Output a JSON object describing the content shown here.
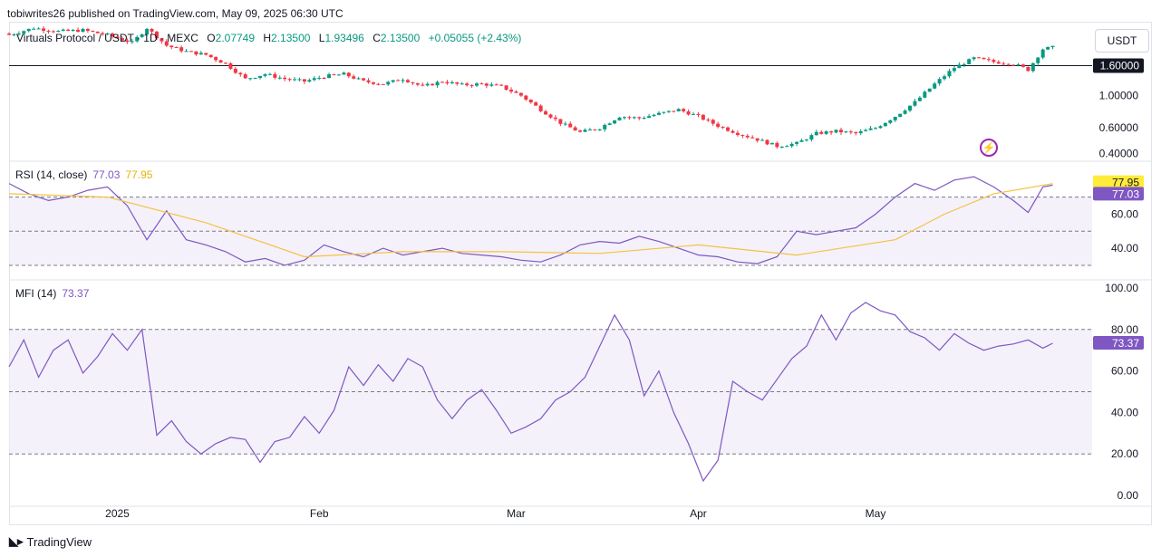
{
  "header": {
    "publisher_line": "tobiwrites26 published on TradingView.com, May 09, 2025 06:30 UTC"
  },
  "legend": {
    "symbol": "Virtuals Protocol / USDT · 1D · MEXC",
    "open_key": "O",
    "open": "2.07749",
    "high_key": "H",
    "high": "2.13500",
    "low_key": "L",
    "low": "1.93496",
    "close_key": "C",
    "close": "2.13500",
    "change": "+0.05055 (+2.43%)"
  },
  "currency_button": "USDT",
  "rsi_label": {
    "name": "RSI (14, close)",
    "value": "77.03",
    "ma_value": "77.95"
  },
  "mfi_label": {
    "name": "MFI (14)",
    "value": "73.37"
  },
  "footer": {
    "brand": "TradingView"
  },
  "icons": {
    "flash": "flash-icon",
    "logo": "tradingview-logo-icon"
  },
  "colors": {
    "up": "#089981",
    "down": "#f23645",
    "rsi": "#7e57c2",
    "rsi_ma": "#f5c242",
    "mfi": "#7e57c2",
    "band": "#ede7f6"
  },
  "chart_data": [
    {
      "type": "candlestick",
      "title": "Virtuals Protocol / USDT · 1D · MEXC",
      "price_scale": "log",
      "y_ticks": [
        "1.00000",
        "0.60000",
        "0.40000"
      ],
      "x_ticks": [
        "2025",
        "Feb",
        "Mar",
        "Apr",
        "May"
      ],
      "horizontal_level": {
        "value": 1.6,
        "label": "1.60000"
      },
      "close_path": [
        [
          0,
          2.6
        ],
        [
          5,
          2.9
        ],
        [
          10,
          2.75
        ],
        [
          15,
          2.8
        ],
        [
          20,
          2.6
        ],
        [
          25,
          2.3
        ],
        [
          28,
          2.9
        ],
        [
          32,
          2.2
        ],
        [
          36,
          2.0
        ],
        [
          40,
          1.9
        ],
        [
          44,
          1.65
        ],
        [
          48,
          1.3
        ],
        [
          52,
          1.4
        ],
        [
          56,
          1.3
        ],
        [
          60,
          1.25
        ],
        [
          64,
          1.35
        ],
        [
          68,
          1.4
        ],
        [
          72,
          1.25
        ],
        [
          76,
          1.2
        ],
        [
          80,
          1.3
        ],
        [
          84,
          1.15
        ],
        [
          88,
          1.25
        ],
        [
          92,
          1.18
        ],
        [
          96,
          1.2
        ],
        [
          100,
          1.15
        ],
        [
          104,
          1.0
        ],
        [
          108,
          0.8
        ],
        [
          112,
          0.65
        ],
        [
          116,
          0.56
        ],
        [
          120,
          0.6
        ],
        [
          124,
          0.72
        ],
        [
          128,
          0.7
        ],
        [
          132,
          0.75
        ],
        [
          136,
          0.8
        ],
        [
          140,
          0.72
        ],
        [
          144,
          0.62
        ],
        [
          148,
          0.55
        ],
        [
          152,
          0.5
        ],
        [
          156,
          0.45
        ],
        [
          160,
          0.47
        ],
        [
          164,
          0.55
        ],
        [
          168,
          0.57
        ],
        [
          172,
          0.55
        ],
        [
          176,
          0.6
        ],
        [
          180,
          0.72
        ],
        [
          184,
          0.9
        ],
        [
          188,
          1.2
        ],
        [
          192,
          1.55
        ],
        [
          196,
          1.8
        ],
        [
          200,
          1.7
        ],
        [
          204,
          1.65
        ],
        [
          207,
          1.5
        ],
        [
          210,
          2.08
        ],
        [
          212,
          2.135
        ]
      ]
    },
    {
      "type": "line",
      "title": "RSI (14, close)",
      "y_ticks": [
        "77.95",
        "77.03",
        "60.00",
        "40.00"
      ],
      "bands": [
        70,
        50,
        30
      ],
      "series": [
        {
          "name": "RSI",
          "x": [
            0,
            4,
            8,
            12,
            16,
            20,
            24,
            28,
            32,
            36,
            40,
            44,
            48,
            52,
            56,
            60,
            64,
            68,
            72,
            76,
            80,
            84,
            88,
            92,
            96,
            100,
            104,
            108,
            112,
            116,
            120,
            124,
            128,
            132,
            136,
            140,
            144,
            148,
            152,
            156,
            160,
            164,
            168,
            172,
            176,
            180,
            184,
            188,
            192,
            196,
            200,
            204,
            207,
            210,
            212
          ],
          "values": [
            78,
            72,
            68,
            70,
            74,
            76,
            65,
            45,
            62,
            45,
            42,
            38,
            32,
            34,
            30,
            33,
            42,
            38,
            35,
            40,
            36,
            38,
            40,
            37,
            36,
            35,
            33,
            32,
            36,
            42,
            44,
            43,
            47,
            44,
            40,
            36,
            35,
            32,
            31,
            35,
            50,
            48,
            50,
            52,
            60,
            70,
            78,
            74,
            80,
            82,
            76,
            68,
            61,
            76,
            77.03
          ]
        },
        {
          "name": "RSI MA",
          "x": [
            0,
            20,
            40,
            60,
            80,
            100,
            120,
            140,
            160,
            180,
            190,
            200,
            212
          ],
          "values": [
            72,
            70,
            55,
            35,
            38,
            38,
            37,
            42,
            36,
            45,
            60,
            72,
            77.95
          ]
        }
      ]
    },
    {
      "type": "line",
      "title": "MFI (14)",
      "y_ticks": [
        "100.00",
        "80.00",
        "60.00",
        "40.00",
        "20.00",
        "0.00"
      ],
      "bands": [
        80,
        50,
        20
      ],
      "series": [
        {
          "name": "MFI",
          "x": [
            0,
            3,
            6,
            9,
            12,
            15,
            18,
            21,
            24,
            27,
            30,
            33,
            36,
            39,
            42,
            45,
            48,
            51,
            54,
            57,
            60,
            63,
            66,
            69,
            72,
            75,
            78,
            81,
            84,
            87,
            90,
            93,
            96,
            99,
            102,
            105,
            108,
            111,
            114,
            117,
            120,
            123,
            126,
            129,
            132,
            135,
            138,
            141,
            144,
            147,
            150,
            153,
            156,
            159,
            162,
            165,
            168,
            171,
            174,
            177,
            180,
            183,
            186,
            189,
            192,
            195,
            198,
            201,
            204,
            207,
            210,
            212
          ],
          "values": [
            62,
            75,
            57,
            70,
            75,
            59,
            67,
            78,
            70,
            80,
            29,
            36,
            26,
            20,
            25,
            28,
            27,
            16,
            26,
            28,
            38,
            30,
            41,
            62,
            53,
            63,
            55,
            66,
            62,
            46,
            37,
            46,
            51,
            41,
            30,
            33,
            37,
            46,
            50,
            57,
            72,
            87,
            75,
            48,
            60,
            40,
            25,
            7,
            17,
            55,
            50,
            46,
            56,
            66,
            72,
            87,
            75,
            88,
            93,
            89,
            87,
            79,
            76,
            70,
            78,
            73.37,
            70,
            72,
            73,
            75,
            71,
            73.37
          ]
        }
      ]
    }
  ]
}
